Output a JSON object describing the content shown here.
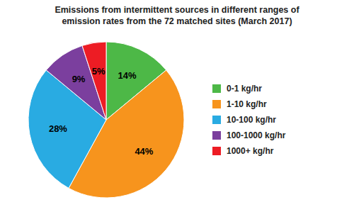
{
  "chart_data": {
    "type": "pie",
    "title": "Emissions from intermittent sources in different ranges of\nemission rates from the 72 matched sites (March 2017)",
    "categories": [
      "0-1 kg/hr",
      "1-10 kg/hr",
      "10-100 kg/hr",
      "100-1000 kg/hr",
      "1000+ kg/hr"
    ],
    "values": [
      14,
      44,
      28,
      9,
      5
    ],
    "value_labels": [
      "14%",
      "44%",
      "28%",
      "9%",
      "5%"
    ],
    "colors": [
      "#4db847",
      "#f7941d",
      "#29abe2",
      "#7b3f9e",
      "#ed1c24"
    ],
    "data_labels": true,
    "legend": "right"
  }
}
